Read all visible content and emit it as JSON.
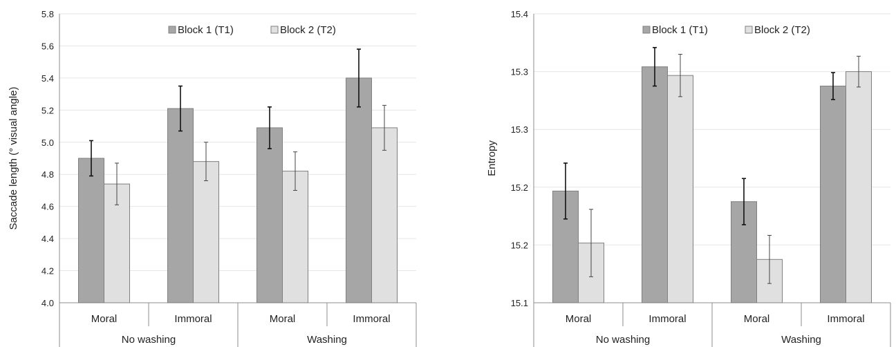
{
  "chart_data": [
    {
      "type": "bar",
      "ylabel": "Saccade length (° visual angle)",
      "ylim": [
        4.0,
        5.8
      ],
      "y_ticks": [
        "4.0",
        "4.2",
        "4.4",
        "4.6",
        "4.8",
        "5.0",
        "5.2",
        "5.4",
        "5.6",
        "5.8"
      ],
      "grid": true,
      "legend_position": "top",
      "categories": [
        "Moral",
        "Immoral",
        "Moral",
        "Immoral"
      ],
      "groups": [
        {
          "label": "No washing",
          "categories": [
            "Moral",
            "Immoral"
          ]
        },
        {
          "label": "Washing",
          "categories": [
            "Moral",
            "Immoral"
          ]
        }
      ],
      "series": [
        {
          "name": "Block 1 (T1)",
          "color": "#a6a6a6",
          "values": [
            4.9,
            5.21,
            5.09,
            5.4
          ],
          "errors": [
            0.11,
            0.14,
            0.13,
            0.18
          ]
        },
        {
          "name": "Block 2 (T2)",
          "color": "#e0e0e0",
          "values": [
            4.74,
            4.88,
            4.82,
            5.09
          ],
          "errors": [
            0.13,
            0.12,
            0.12,
            0.14
          ]
        }
      ]
    },
    {
      "type": "bar",
      "ylabel": "Entropy",
      "ylim": [
        15.1,
        15.4
      ],
      "y_ticks": [
        "15.1",
        "15.2",
        "15.2",
        "15.3",
        "15.3",
        "15.4"
      ],
      "grid": true,
      "legend_position": "top",
      "categories": [
        "Moral",
        "Immoral",
        "Moral",
        "Immoral"
      ],
      "groups": [
        {
          "label": "No washing",
          "categories": [
            "Moral",
            "Immoral"
          ]
        },
        {
          "label": "Washing",
          "categories": [
            "Moral",
            "Immoral"
          ]
        }
      ],
      "series": [
        {
          "name": "Block 1 (T1)",
          "color": "#a6a6a6",
          "values": [
            15.216,
            15.345,
            15.205,
            15.325
          ],
          "errors": [
            0.029,
            0.02,
            0.024,
            0.014
          ]
        },
        {
          "name": "Block 2 (T2)",
          "color": "#e0e0e0",
          "values": [
            15.162,
            15.336,
            15.145,
            15.34
          ],
          "errors": [
            0.035,
            0.022,
            0.025,
            0.016
          ]
        }
      ]
    }
  ]
}
